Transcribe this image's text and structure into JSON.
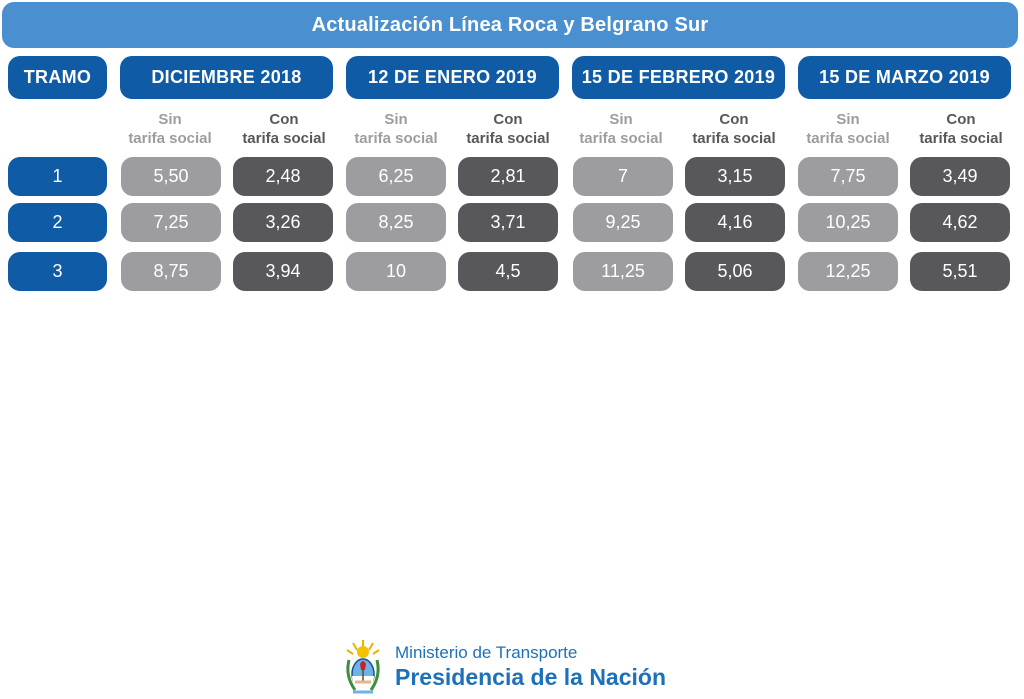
{
  "title": "Actualización Línea Roca y Belgrano Sur",
  "tramo_label": "TRAMO",
  "sin_label": [
    "Sin",
    "tarifa social"
  ],
  "con_label": [
    "Con",
    "tarifa social"
  ],
  "periods": [
    {
      "label": "DICIEMBRE 2018",
      "sin": [
        "5,50",
        "7,25",
        "8,75"
      ],
      "con": [
        "2,48",
        "3,26",
        "3,94"
      ]
    },
    {
      "label": "12 DE ENERO 2019",
      "sin": [
        "6,25",
        "8,25",
        "10"
      ],
      "con": [
        "2,81",
        "3,71",
        "4,5"
      ]
    },
    {
      "label": "15 DE FEBRERO 2019",
      "sin": [
        "7",
        "9,25",
        "11,25"
      ],
      "con": [
        "3,15",
        "4,16",
        "5,06"
      ]
    },
    {
      "label": "15 DE MARZO 2019",
      "sin": [
        "7,75",
        "10,25",
        "12,25"
      ],
      "con": [
        "3,49",
        "4,62",
        "5,51"
      ]
    }
  ],
  "tramos": [
    "1",
    "2",
    "3"
  ],
  "footer": {
    "ministry": "Ministerio de Transporte",
    "presidency": "Presidencia de la Nación",
    "seal_icon": "argentina-coat-of-arms-icon"
  },
  "colors": {
    "banner": "#4a90d0",
    "header": "#0f5ba6",
    "sin": "#9d9da1",
    "con": "#58575c",
    "footer_text": "#1d71b8"
  }
}
